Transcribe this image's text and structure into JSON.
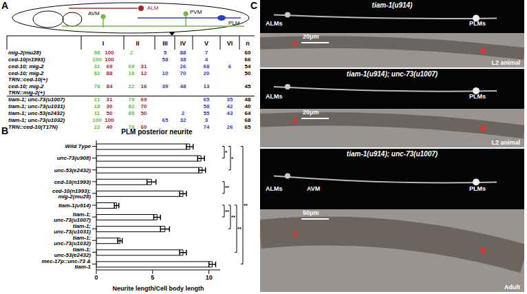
{
  "panel_A": {
    "label": "A",
    "neurons": [
      {
        "name": "ALM",
        "color": "#a5282c"
      },
      {
        "name": "AVM",
        "color": "#6fb843"
      },
      {
        "name": "PVM",
        "color": "#6fb843"
      },
      {
        "name": "PLM",
        "color": "#2b3fc2"
      }
    ],
    "columns": [
      "I",
      "II",
      "III",
      "IV",
      "V",
      "VI"
    ],
    "n_label": "n",
    "pair_columns": [
      "I",
      "II"
    ],
    "pair_colors": [
      "#6fb843",
      "#a5282c"
    ],
    "single_color": "#2b3fc2",
    "rows": [
      {
        "label": [
          "mig-2(mu28)"
        ],
        "cells": {
          "I": [
            98,
            100
          ],
          "II": [
            2
          ],
          "III": [
            5
          ],
          "IV": [
            88
          ],
          "V": [
            7
          ]
        },
        "n": 60
      },
      {
        "label": [
          "ced-10(n1993)"
        ],
        "cells": {
          "I": [
            100,
            100
          ],
          "III": [
            58
          ],
          "IV": [
            38
          ],
          "V": [
            4
          ]
        },
        "n": 66
      },
      {
        "label": [
          "ced-10; mig-2"
        ],
        "cells": {
          "I": [
            31,
            69
          ],
          "II": [
            69,
            31
          ],
          "IV": [
            26
          ],
          "V": [
            68
          ],
          "VI": [
            6
          ]
        },
        "n": 54
      },
      {
        "label": [
          "ced-10; mig-2",
          "TRN::ced-10(+)"
        ],
        "cells": {
          "I": [
            82,
            88
          ],
          "II": [
            18,
            12
          ],
          "III": [
            10
          ],
          "IV": [
            70
          ],
          "V": [
            20
          ]
        },
        "n": 50
      },
      {
        "label": [
          "ced-10; mig-2",
          "TRN::mig-2(+)"
        ],
        "cells": {
          "I": [
            78,
            84
          ],
          "II": [
            22,
            16
          ],
          "III": [
            39
          ],
          "IV": [
            48
          ],
          "V": [
            13
          ]
        },
        "n": 45
      },
      {
        "label": [
          "tiam-1; unc-73(u1007)"
        ],
        "cells": {
          "I": [
            21,
            31
          ],
          "II": [
            79,
            69
          ],
          "V": [
            65
          ],
          "VI": [
            35
          ]
        },
        "n": 48
      },
      {
        "label": [
          "tiam-1; unc-73(u1031)"
        ],
        "cells": {
          "I": [
            18,
            30
          ],
          "II": [
            82,
            70
          ],
          "V": [
            58
          ],
          "VI": [
            42
          ]
        },
        "n": 40
      },
      {
        "label": [
          "tiam-1; unc-53(e2432)"
        ],
        "cells": {
          "I": [
            11,
            50
          ],
          "II": [
            89,
            50
          ],
          "IV": [
            2
          ],
          "V": [
            55
          ],
          "VI": [
            43
          ]
        },
        "n": 64
      },
      {
        "label": [
          "tiam-1; unc-73(u1032)"
        ],
        "cells": {
          "I": [
            100,
            100
          ],
          "III": [
            65
          ],
          "IV": [
            32
          ],
          "V": [
            3
          ]
        },
        "n": 68
      },
      {
        "label": [
          "TRN::ced-10(T17N)"
        ],
        "cells": {
          "I": [
            22,
            40
          ],
          "II": [
            78,
            60
          ],
          "V": [
            74
          ],
          "VI": [
            26
          ]
        },
        "n": 65
      }
    ]
  },
  "chart_data": {
    "type": "bar",
    "panel_label": "B",
    "title": "PLM posterior neurite",
    "orientation": "horizontal",
    "x_label": "Neurite length/Cell body length",
    "categories": [
      "Wild Type",
      "unc-73(u908)",
      "unc-53(e2432)",
      "ced-10(n1993)",
      "ced-10(n1993); mig-2(mu28)",
      "tiam-1(u914)",
      "tiam-1; unc-73(u1007)",
      "tiam-1; unc-73(u1031)",
      "tiam-1; unc-73(u1032)",
      "tiam-1; unc-53(e2432)",
      "mec-17p::unc-73 & tiam-1"
    ],
    "values": [
      8.3,
      9.3,
      9.4,
      4.9,
      7.7,
      1.8,
      5.4,
      6.1,
      2.1,
      7.7,
      10.3
    ],
    "error": [
      0.3,
      0.3,
      0.3,
      0.4,
      0.3,
      0.2,
      0.3,
      0.4,
      0.2,
      0.3,
      0.3
    ],
    "color": "#ffffff",
    "xlim": [
      0,
      11
    ],
    "xticks": [
      0,
      5,
      10
    ],
    "grid": false,
    "annotations": [
      {
        "between": [
          "Wild Type",
          "unc-73(u908)"
        ],
        "label": "*"
      },
      {
        "between": [
          "Wild Type",
          "unc-53(e2432)"
        ],
        "label": "*"
      },
      {
        "between": [
          "ced-10(n1993)",
          "ced-10(n1993); mig-2(mu28)"
        ],
        "label": "**"
      },
      {
        "between": [
          "tiam-1(u914)",
          "tiam-1; unc-73(u1007)"
        ],
        "label": "**"
      },
      {
        "between": [
          "tiam-1(u914)",
          "tiam-1; unc-73(u1031)"
        ],
        "label": "**"
      },
      {
        "between": [
          "tiam-1(u914)",
          "tiam-1; unc-53(e2432)"
        ],
        "label": "**"
      },
      {
        "between": [
          "Wild Type",
          "mec-17p::unc-73 & tiam-1"
        ],
        "label": "**"
      }
    ]
  },
  "panel_C": {
    "label": "C",
    "images": [
      {
        "title": "tiam-1(u914)",
        "labels": [
          "ALMs",
          "PLMs"
        ],
        "scale_bar": "20μm",
        "stage": "L2 animal"
      },
      {
        "title": "tiam-1(u914); unc-73(u1007)",
        "labels": [
          "ALMs",
          "PLMs"
        ],
        "scale_bar": "20μm",
        "stage": "L2 animal"
      },
      {
        "title": "tiam-1(u914); unc-73(u1007)",
        "labels": [
          "ALMs",
          "AVM",
          "PLMs"
        ],
        "scale_bar": "50μm",
        "stage": "Adult"
      }
    ]
  }
}
